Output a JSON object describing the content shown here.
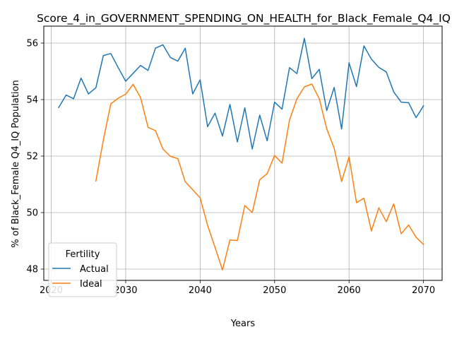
{
  "chart_data": {
    "type": "line",
    "title": "Score_4_in_GOVERNMENT_SPENDING_ON_HEALTH_for_Black_Female_Q4_IQ",
    "xlabel": "Years",
    "ylabel": "% of Black_Female Q4_IQ Population",
    "xlim": [
      2019,
      2072.5
    ],
    "ylim": [
      47.6,
      56.6
    ],
    "xticks": [
      2020,
      2030,
      2040,
      2050,
      2060,
      2070
    ],
    "yticks": [
      48,
      50,
      52,
      54,
      56
    ],
    "grid": true,
    "legend": {
      "title": "Fertility",
      "placement": "lower-left"
    },
    "series": [
      {
        "name": "Actual",
        "color": "#1f77b4",
        "x": [
          2021,
          2022,
          2023,
          2024,
          2025,
          2026,
          2027,
          2028,
          2029,
          2030,
          2031,
          2032,
          2033,
          2034,
          2035,
          2036,
          2037,
          2038,
          2039,
          2040,
          2041,
          2042,
          2043,
          2044,
          2045,
          2046,
          2047,
          2048,
          2049,
          2050,
          2051,
          2052,
          2053,
          2054,
          2055,
          2056,
          2057,
          2058,
          2059,
          2060,
          2061,
          2062,
          2063,
          2064,
          2065,
          2066,
          2067,
          2068,
          2069,
          2070
        ],
        "values": [
          53.72,
          54.16,
          54.03,
          54.76,
          54.2,
          54.42,
          55.56,
          55.63,
          55.13,
          54.65,
          54.93,
          55.21,
          55.03,
          55.82,
          55.94,
          55.49,
          55.36,
          55.82,
          54.2,
          54.7,
          53.04,
          53.52,
          52.71,
          53.83,
          52.5,
          53.71,
          52.25,
          53.45,
          52.54,
          53.91,
          53.66,
          55.13,
          54.92,
          56.17,
          54.74,
          55.07,
          53.61,
          54.43,
          52.96,
          55.3,
          54.46,
          55.9,
          55.43,
          55.14,
          54.98,
          54.27,
          53.91,
          53.89,
          53.36,
          53.78
        ]
      },
      {
        "name": "Ideal",
        "color": "#ff7f0e",
        "x": [
          2026,
          2027,
          2028,
          2029,
          2030,
          2031,
          2032,
          2033,
          2034,
          2035,
          2036,
          2037,
          2038,
          2039,
          2040,
          2041,
          2042,
          2043,
          2044,
          2045,
          2046,
          2047,
          2048,
          2049,
          2050,
          2051,
          2052,
          2053,
          2054,
          2055,
          2056,
          2057,
          2058,
          2059,
          2060,
          2061,
          2062,
          2063,
          2064,
          2065,
          2066,
          2067,
          2068,
          2069,
          2070
        ],
        "values": [
          51.12,
          52.57,
          53.85,
          54.05,
          54.19,
          54.54,
          54.07,
          53.02,
          52.9,
          52.25,
          51.99,
          51.91,
          51.09,
          50.81,
          50.52,
          49.55,
          48.77,
          47.97,
          49.03,
          49.01,
          50.25,
          50.0,
          51.16,
          51.38,
          52.02,
          51.75,
          53.27,
          54.03,
          54.45,
          54.55,
          54.03,
          52.97,
          52.28,
          51.1,
          51.97,
          50.35,
          50.51,
          49.35,
          50.17,
          49.68,
          50.31,
          49.25,
          49.56,
          49.13,
          48.87
        ]
      }
    ]
  }
}
